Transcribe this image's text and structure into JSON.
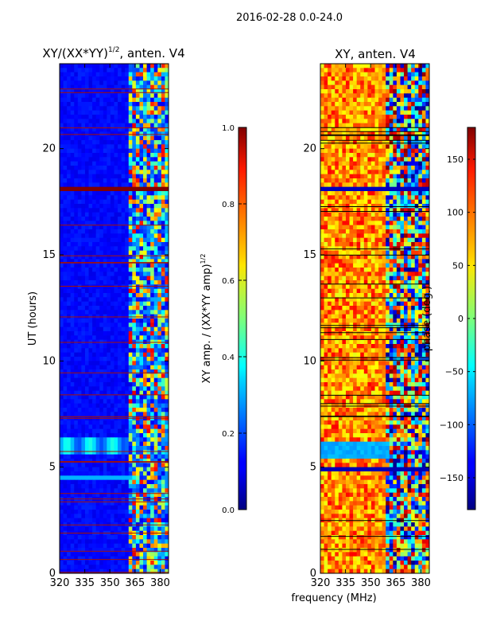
{
  "suptitle": "2016-02-28 0.0-24.0",
  "xlabel": "frequency (MHz)",
  "chart_data": [
    {
      "type": "heatmap",
      "title": "XY/(XX*YY)",
      "title_sup": "1/2",
      "title_suffix": ", anten. V4",
      "xlabel": "",
      "ylabel": "UT (hours)",
      "xlim": [
        320,
        385
      ],
      "ylim": [
        0,
        24
      ],
      "xticks": [
        320,
        335,
        350,
        365,
        380
      ],
      "yticks": [
        0,
        5,
        10,
        15,
        20
      ],
      "colorbar": {
        "label": "XY amp. / (XX*YY amp)",
        "label_sup": "1/2",
        "range": [
          0.0,
          1.0
        ],
        "ticks": [
          "0.0",
          "0.2",
          "0.4",
          "0.6",
          "0.8",
          "1.0"
        ],
        "colormap": "jet"
      }
    },
    {
      "type": "heatmap",
      "title": "XY, anten. V4",
      "xlabel": "",
      "ylabel": "",
      "xlim": [
        320,
        385
      ],
      "ylim": [
        0,
        24
      ],
      "xticks": [
        320,
        335,
        350,
        365,
        380
      ],
      "yticks": [
        0,
        5,
        10,
        15,
        20
      ],
      "colorbar": {
        "label": "phase (deg.)",
        "range": [
          -180,
          180
        ],
        "ticks": [
          "−150",
          "−100",
          "−50",
          "0",
          "50",
          "100",
          "150"
        ],
        "colormap": "jet"
      }
    }
  ]
}
